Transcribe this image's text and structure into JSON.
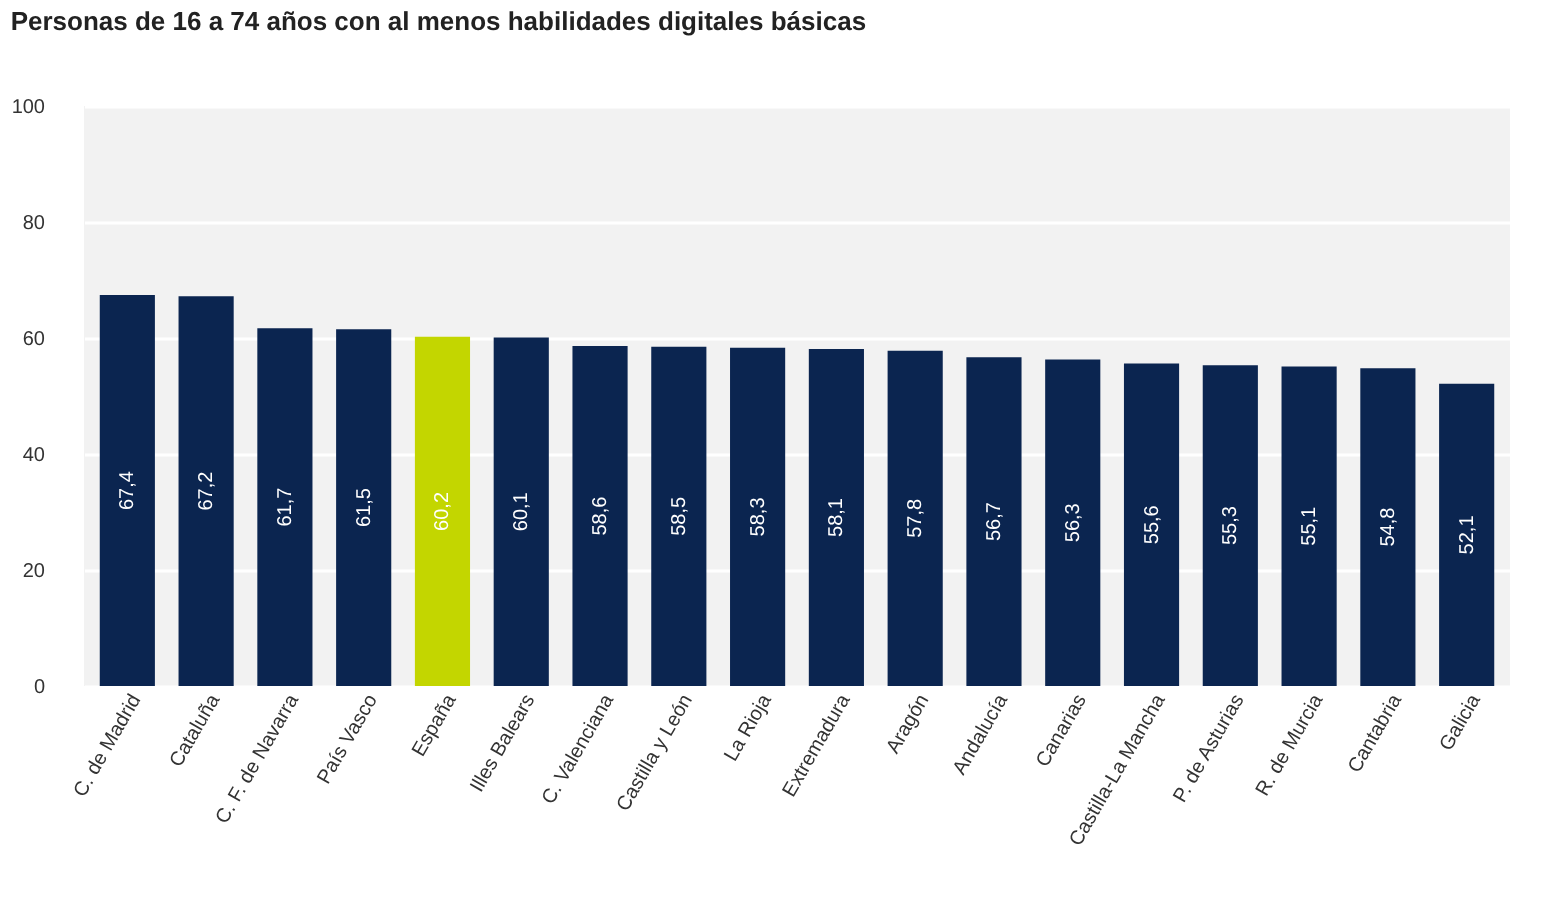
{
  "chart_data": {
    "type": "bar",
    "title": "Personas de 16 a 74 años con al menos habilidades digitales básicas",
    "categories": [
      "C. de Madrid",
      "Cataluña",
      "C. F. de Navarra",
      "País Vasco",
      "España",
      "Illes Balears",
      "C. Valenciana",
      "Castilla y León",
      "La Rioja",
      "Extremadura",
      "Aragón",
      "Andalucía",
      "Canarias",
      "Castilla-La Mancha",
      "P. de Asturias",
      "R. de Murcia",
      "Cantabria",
      "Galicia"
    ],
    "values": [
      67.4,
      67.2,
      61.7,
      61.5,
      60.2,
      60.1,
      58.6,
      58.5,
      58.3,
      58.1,
      57.8,
      56.7,
      56.3,
      55.6,
      55.3,
      55.1,
      54.8,
      52.1
    ],
    "colors": [
      "#0b2550",
      "#0b2550",
      "#0b2550",
      "#0b2550",
      "#c3d600",
      "#0b2550",
      "#0b2550",
      "#0b2550",
      "#0b2550",
      "#0b2550",
      "#0b2550",
      "#0b2550",
      "#0b2550",
      "#0b2550",
      "#0b2550",
      "#0b2550",
      "#0b2550",
      "#0b2550"
    ],
    "value_labels": [
      "67,4",
      "67,2",
      "61,7",
      "61,5",
      "60,2",
      "60,1",
      "58,6",
      "58,5",
      "58,3",
      "58,1",
      "57,8",
      "56,7",
      "56,3",
      "55,6",
      "55,3",
      "55,1",
      "54,8",
      "52,1"
    ],
    "ylim": [
      0,
      100
    ],
    "yticks": [
      0,
      20,
      40,
      60,
      80,
      100
    ],
    "grid": "y"
  }
}
